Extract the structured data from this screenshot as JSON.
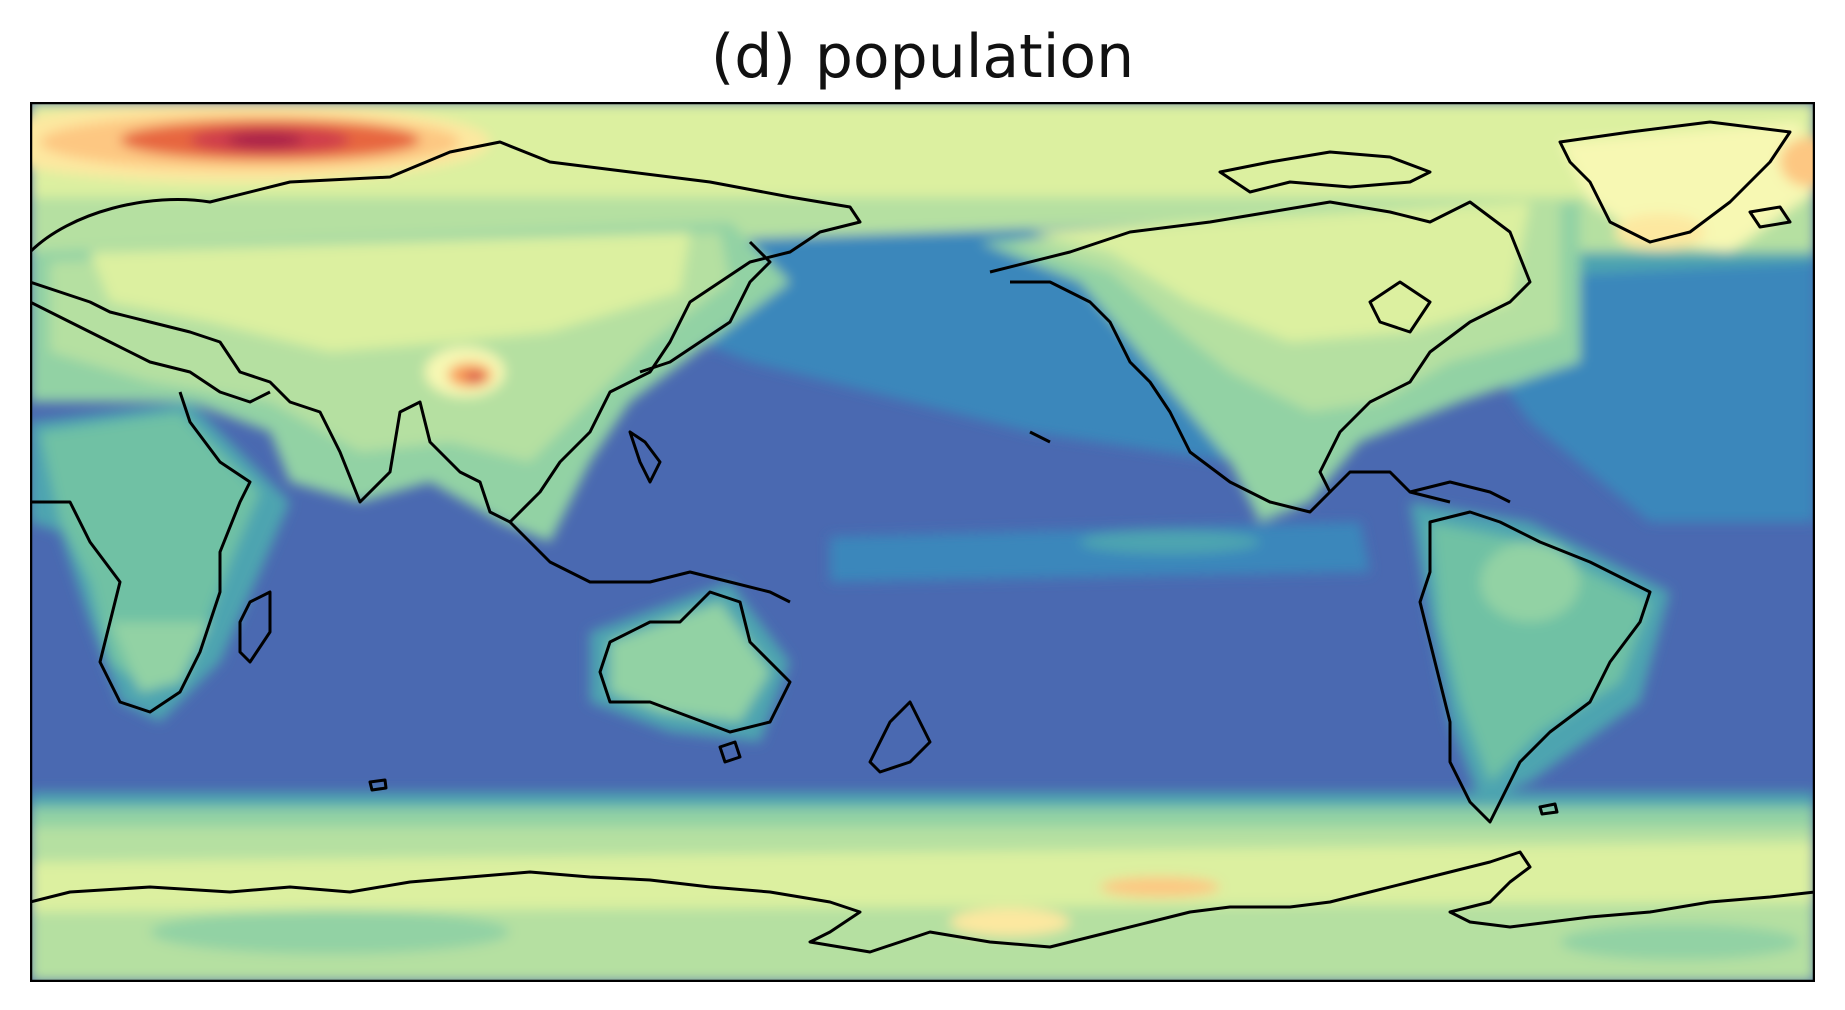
{
  "title": "(d) population",
  "palette": {
    "ocean_low": "#4a69b1",
    "ocean_mid": "#3a87bb",
    "ocean_teal": "#4ea4b0",
    "coast_green": "#70c1a4",
    "green": "#92d2a4",
    "light_green": "#b5e0a1",
    "yellow_green": "#dcf0a0",
    "pale_yellow": "#f7f8b3",
    "cream": "#fde8a0",
    "light_orange": "#fdc782",
    "orange": "#f99d59",
    "red_orange": "#e7663f",
    "red": "#cf3e4b",
    "dark_red": "#a8204a",
    "coastline": "#000000"
  }
}
